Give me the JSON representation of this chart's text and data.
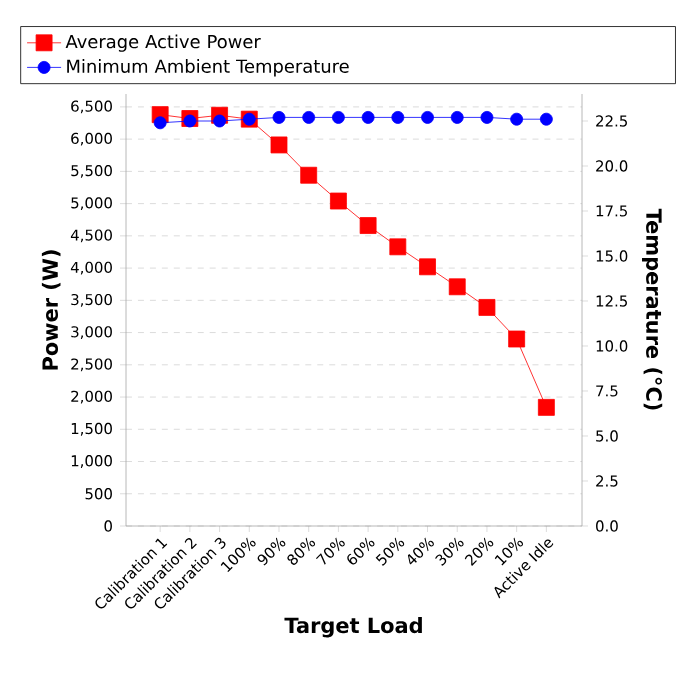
{
  "chart_data": {
    "type": "line",
    "xlabel": "Target Load",
    "ylabel": "Power (W)",
    "y2label": "Temperature  (°C)",
    "categories": [
      "Calibration 1",
      "Calibration 2",
      "Calibration 3",
      "100%",
      "90%",
      "80%",
      "70%",
      "60%",
      "50%",
      "40%",
      "30%",
      "20%",
      "10%",
      "Active Idle"
    ],
    "series": [
      {
        "name": "Average Active Power",
        "color": "#ff0000",
        "marker": "square",
        "values": [
          6380,
          6320,
          6370,
          6310,
          5910,
          5440,
          5040,
          4660,
          4330,
          4020,
          3710,
          3390,
          2900,
          1840
        ]
      },
      {
        "name": "Minimum Ambient Temperature",
        "color": "#0000ff",
        "marker": "circle",
        "axis": "y2",
        "values": [
          22.4,
          22.5,
          22.5,
          22.6,
          22.7,
          22.7,
          22.7,
          22.7,
          22.7,
          22.7,
          22.7,
          22.7,
          22.6,
          22.6
        ]
      }
    ],
    "ylim": [
      0,
      6700
    ],
    "yticks": [
      0,
      {
        "value": 500,
        "label": "500"
      },
      {
        "value": 1000,
        "label": "1,000"
      },
      {
        "value": 1500,
        "label": "1,500"
      },
      {
        "value": 2000,
        "label": "2,000"
      },
      {
        "value": 2500,
        "label": "2,500"
      },
      {
        "value": 3000,
        "label": "3,000"
      },
      {
        "value": 3500,
        "label": "3,500"
      },
      {
        "value": 4000,
        "label": "4,000"
      },
      {
        "value": 4500,
        "label": "4,500"
      },
      {
        "value": 5000,
        "label": "5,000"
      },
      {
        "value": 5500,
        "label": "5,500"
      },
      {
        "value": 6000,
        "label": "6,000"
      },
      {
        "value": 6500,
        "label": "6,500"
      }
    ],
    "y2lim": [
      0,
      24
    ],
    "y2ticks": [
      {
        "value": 0,
        "label": "0.0"
      },
      2.5,
      {
        "value": 5,
        "label": "5.0"
      },
      7.5,
      {
        "value": 10,
        "label": "10.0"
      },
      12.5,
      {
        "value": 15,
        "label": "15.0"
      },
      17.5,
      {
        "value": 20,
        "label": "20.0"
      },
      22.5
    ],
    "grid": "y",
    "legend": "top",
    "line_style": "solid"
  }
}
